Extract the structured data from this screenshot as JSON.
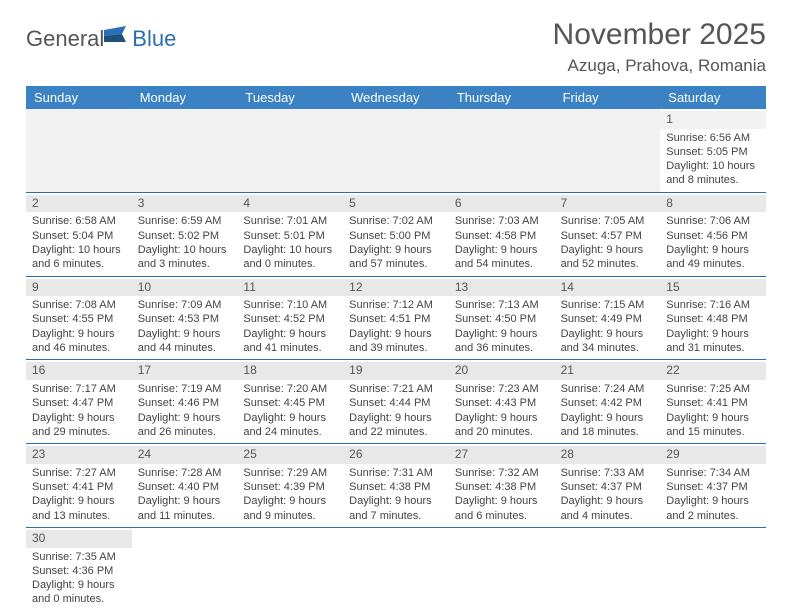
{
  "logo": {
    "text1": "General",
    "text2": "Blue"
  },
  "title": {
    "month": "November 2025",
    "location": "Azuga, Prahova, Romania"
  },
  "colors": {
    "header_bg": "#3b82c4",
    "header_text": "#ffffff",
    "border": "#2a6fb5",
    "daynum_bg": "#e8e8e8",
    "logo_gray": "#555555",
    "logo_blue": "#2a6fb5"
  },
  "day_headers": [
    "Sunday",
    "Monday",
    "Tuesday",
    "Wednesday",
    "Thursday",
    "Friday",
    "Saturday"
  ],
  "weeks": [
    [
      null,
      null,
      null,
      null,
      null,
      null,
      {
        "n": "1",
        "sr": "Sunrise: 6:56 AM",
        "ss": "Sunset: 5:05 PM",
        "d1": "Daylight: 10 hours",
        "d2": "and 8 minutes."
      }
    ],
    [
      {
        "n": "2",
        "sr": "Sunrise: 6:58 AM",
        "ss": "Sunset: 5:04 PM",
        "d1": "Daylight: 10 hours",
        "d2": "and 6 minutes."
      },
      {
        "n": "3",
        "sr": "Sunrise: 6:59 AM",
        "ss": "Sunset: 5:02 PM",
        "d1": "Daylight: 10 hours",
        "d2": "and 3 minutes."
      },
      {
        "n": "4",
        "sr": "Sunrise: 7:01 AM",
        "ss": "Sunset: 5:01 PM",
        "d1": "Daylight: 10 hours",
        "d2": "and 0 minutes."
      },
      {
        "n": "5",
        "sr": "Sunrise: 7:02 AM",
        "ss": "Sunset: 5:00 PM",
        "d1": "Daylight: 9 hours",
        "d2": "and 57 minutes."
      },
      {
        "n": "6",
        "sr": "Sunrise: 7:03 AM",
        "ss": "Sunset: 4:58 PM",
        "d1": "Daylight: 9 hours",
        "d2": "and 54 minutes."
      },
      {
        "n": "7",
        "sr": "Sunrise: 7:05 AM",
        "ss": "Sunset: 4:57 PM",
        "d1": "Daylight: 9 hours",
        "d2": "and 52 minutes."
      },
      {
        "n": "8",
        "sr": "Sunrise: 7:06 AM",
        "ss": "Sunset: 4:56 PM",
        "d1": "Daylight: 9 hours",
        "d2": "and 49 minutes."
      }
    ],
    [
      {
        "n": "9",
        "sr": "Sunrise: 7:08 AM",
        "ss": "Sunset: 4:55 PM",
        "d1": "Daylight: 9 hours",
        "d2": "and 46 minutes."
      },
      {
        "n": "10",
        "sr": "Sunrise: 7:09 AM",
        "ss": "Sunset: 4:53 PM",
        "d1": "Daylight: 9 hours",
        "d2": "and 44 minutes."
      },
      {
        "n": "11",
        "sr": "Sunrise: 7:10 AM",
        "ss": "Sunset: 4:52 PM",
        "d1": "Daylight: 9 hours",
        "d2": "and 41 minutes."
      },
      {
        "n": "12",
        "sr": "Sunrise: 7:12 AM",
        "ss": "Sunset: 4:51 PM",
        "d1": "Daylight: 9 hours",
        "d2": "and 39 minutes."
      },
      {
        "n": "13",
        "sr": "Sunrise: 7:13 AM",
        "ss": "Sunset: 4:50 PM",
        "d1": "Daylight: 9 hours",
        "d2": "and 36 minutes."
      },
      {
        "n": "14",
        "sr": "Sunrise: 7:15 AM",
        "ss": "Sunset: 4:49 PM",
        "d1": "Daylight: 9 hours",
        "d2": "and 34 minutes."
      },
      {
        "n": "15",
        "sr": "Sunrise: 7:16 AM",
        "ss": "Sunset: 4:48 PM",
        "d1": "Daylight: 9 hours",
        "d2": "and 31 minutes."
      }
    ],
    [
      {
        "n": "16",
        "sr": "Sunrise: 7:17 AM",
        "ss": "Sunset: 4:47 PM",
        "d1": "Daylight: 9 hours",
        "d2": "and 29 minutes."
      },
      {
        "n": "17",
        "sr": "Sunrise: 7:19 AM",
        "ss": "Sunset: 4:46 PM",
        "d1": "Daylight: 9 hours",
        "d2": "and 26 minutes."
      },
      {
        "n": "18",
        "sr": "Sunrise: 7:20 AM",
        "ss": "Sunset: 4:45 PM",
        "d1": "Daylight: 9 hours",
        "d2": "and 24 minutes."
      },
      {
        "n": "19",
        "sr": "Sunrise: 7:21 AM",
        "ss": "Sunset: 4:44 PM",
        "d1": "Daylight: 9 hours",
        "d2": "and 22 minutes."
      },
      {
        "n": "20",
        "sr": "Sunrise: 7:23 AM",
        "ss": "Sunset: 4:43 PM",
        "d1": "Daylight: 9 hours",
        "d2": "and 20 minutes."
      },
      {
        "n": "21",
        "sr": "Sunrise: 7:24 AM",
        "ss": "Sunset: 4:42 PM",
        "d1": "Daylight: 9 hours",
        "d2": "and 18 minutes."
      },
      {
        "n": "22",
        "sr": "Sunrise: 7:25 AM",
        "ss": "Sunset: 4:41 PM",
        "d1": "Daylight: 9 hours",
        "d2": "and 15 minutes."
      }
    ],
    [
      {
        "n": "23",
        "sr": "Sunrise: 7:27 AM",
        "ss": "Sunset: 4:41 PM",
        "d1": "Daylight: 9 hours",
        "d2": "and 13 minutes."
      },
      {
        "n": "24",
        "sr": "Sunrise: 7:28 AM",
        "ss": "Sunset: 4:40 PM",
        "d1": "Daylight: 9 hours",
        "d2": "and 11 minutes."
      },
      {
        "n": "25",
        "sr": "Sunrise: 7:29 AM",
        "ss": "Sunset: 4:39 PM",
        "d1": "Daylight: 9 hours",
        "d2": "and 9 minutes."
      },
      {
        "n": "26",
        "sr": "Sunrise: 7:31 AM",
        "ss": "Sunset: 4:38 PM",
        "d1": "Daylight: 9 hours",
        "d2": "and 7 minutes."
      },
      {
        "n": "27",
        "sr": "Sunrise: 7:32 AM",
        "ss": "Sunset: 4:38 PM",
        "d1": "Daylight: 9 hours",
        "d2": "and 6 minutes."
      },
      {
        "n": "28",
        "sr": "Sunrise: 7:33 AM",
        "ss": "Sunset: 4:37 PM",
        "d1": "Daylight: 9 hours",
        "d2": "and 4 minutes."
      },
      {
        "n": "29",
        "sr": "Sunrise: 7:34 AM",
        "ss": "Sunset: 4:37 PM",
        "d1": "Daylight: 9 hours",
        "d2": "and 2 minutes."
      }
    ],
    [
      {
        "n": "30",
        "sr": "Sunrise: 7:35 AM",
        "ss": "Sunset: 4:36 PM",
        "d1": "Daylight: 9 hours",
        "d2": "and 0 minutes."
      },
      null,
      null,
      null,
      null,
      null,
      null
    ]
  ]
}
